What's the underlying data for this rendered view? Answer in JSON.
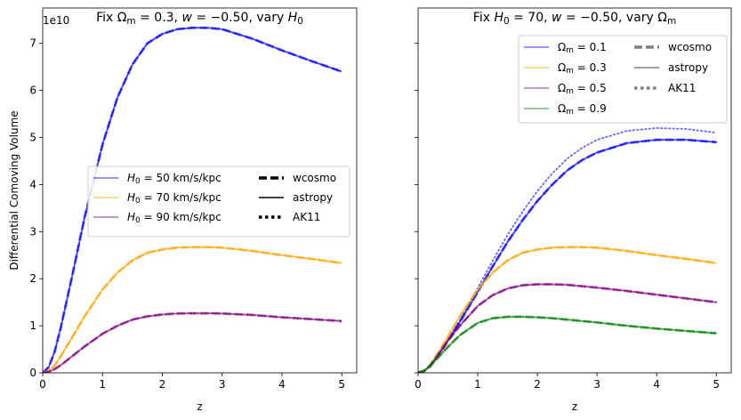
{
  "figure": {
    "ylabel": "Differential Comoving Volume",
    "offset_text": "1e10"
  },
  "chart_data": [
    {
      "type": "line",
      "title": "Fix Ωm = 0.3, w = −0.50, vary H0",
      "title_parts": [
        {
          "t": "Fix Ω",
          "s": "normal"
        },
        {
          "t": "m",
          "s": "sub"
        },
        {
          "t": " = 0.3, ",
          "s": "normal"
        },
        {
          "t": "w",
          "s": "italic"
        },
        {
          "t": " = −0.50, vary ",
          "s": "normal"
        },
        {
          "t": "H",
          "s": "italic"
        },
        {
          "t": "0",
          "s": "sub"
        }
      ],
      "xlabel": "z",
      "ylabel": "Differential Comoving Volume",
      "xlim": [
        0,
        5.25
      ],
      "ylim": [
        0,
        7.75
      ],
      "y_scale_factor": "1e10",
      "xticks": [
        0,
        1,
        2,
        3,
        4,
        5
      ],
      "yticks": [
        0,
        1,
        2,
        3,
        4,
        5,
        6,
        7
      ],
      "grid": false,
      "x": [
        0,
        0.1,
        0.2,
        0.3,
        0.5,
        0.7,
        1.0,
        1.25,
        1.5,
        1.75,
        2.0,
        2.25,
        2.5,
        2.75,
        3.0,
        3.5,
        4.0,
        4.5,
        5.0
      ],
      "series": [
        {
          "name": "H0 = 50 km/s/kpc",
          "color": "#0000ff",
          "values": [
            0,
            0.12,
            0.45,
            0.95,
            2.1,
            3.3,
            4.85,
            5.85,
            6.55,
            7.0,
            7.2,
            7.3,
            7.33,
            7.33,
            7.3,
            7.1,
            6.85,
            6.62,
            6.4
          ]
        },
        {
          "name": "H0 = 70 km/s/kpc",
          "color": "#ffa500",
          "values": [
            0,
            0.04,
            0.16,
            0.35,
            0.77,
            1.2,
            1.77,
            2.13,
            2.39,
            2.55,
            2.62,
            2.66,
            2.67,
            2.67,
            2.66,
            2.59,
            2.5,
            2.42,
            2.33
          ]
        },
        {
          "name": "H0 = 90 km/s/kpc",
          "color": "#800080",
          "values": [
            0,
            0.02,
            0.08,
            0.16,
            0.36,
            0.56,
            0.83,
            1.0,
            1.13,
            1.2,
            1.24,
            1.26,
            1.265,
            1.265,
            1.26,
            1.23,
            1.18,
            1.14,
            1.1
          ]
        }
      ],
      "legend": {
        "placement": "center-left",
        "entries": [
          {
            "label": "H0 = 50 km/s/kpc",
            "parts": [
              {
                "t": "H",
                "s": "italic"
              },
              {
                "t": "0",
                "s": "sub"
              },
              {
                "t": " = 50 km/s/kpc",
                "s": "normal"
              }
            ],
            "color": "#0000ff",
            "style": "solid-light"
          },
          {
            "label": "H0 = 70 km/s/kpc",
            "parts": [
              {
                "t": "H",
                "s": "italic"
              },
              {
                "t": "0",
                "s": "sub"
              },
              {
                "t": " = 70 km/s/kpc",
                "s": "normal"
              }
            ],
            "color": "#ffa500",
            "style": "solid-light"
          },
          {
            "label": "H0 = 90 km/s/kpc",
            "parts": [
              {
                "t": "H",
                "s": "italic"
              },
              {
                "t": "0",
                "s": "sub"
              },
              {
                "t": " = 90 km/s/kpc",
                "s": "normal"
              }
            ],
            "color": "#800080",
            "style": "solid-light"
          },
          {
            "label": "wcosmo",
            "parts": [
              {
                "t": "wcosmo",
                "s": "normal"
              }
            ],
            "color": "#000000",
            "style": "dashed"
          },
          {
            "label": "astropy",
            "parts": [
              {
                "t": "astropy",
                "s": "normal"
              }
            ],
            "color": "#000000",
            "style": "solid"
          },
          {
            "label": "AK11",
            "parts": [
              {
                "t": "AK11",
                "s": "normal"
              }
            ],
            "color": "#000000",
            "style": "dotted"
          }
        ]
      }
    },
    {
      "type": "line",
      "title": "Fix H0 = 70, w = −0.50, vary Ωm",
      "title_parts": [
        {
          "t": "Fix ",
          "s": "normal"
        },
        {
          "t": "H",
          "s": "italic"
        },
        {
          "t": "0",
          "s": "sub"
        },
        {
          "t": " = 70, ",
          "s": "normal"
        },
        {
          "t": "w",
          "s": "italic"
        },
        {
          "t": " = −0.50, vary Ω",
          "s": "normal"
        },
        {
          "t": "m",
          "s": "sub"
        }
      ],
      "xlabel": "z",
      "xlim": [
        0,
        5.25
      ],
      "ylim": [
        0,
        7.75
      ],
      "xticks": [
        0,
        1,
        2,
        3,
        4,
        5
      ],
      "grid": false,
      "x": [
        0,
        0.1,
        0.2,
        0.3,
        0.5,
        0.7,
        1.0,
        1.25,
        1.5,
        1.75,
        2.0,
        2.25,
        2.5,
        2.75,
        3.0,
        3.5,
        4.0,
        4.5,
        5.0
      ],
      "series": [
        {
          "name": "Ωm = 0.1",
          "color": "#0000ff",
          "values": [
            0,
            0.04,
            0.14,
            0.3,
            0.68,
            1.08,
            1.72,
            2.26,
            2.78,
            3.24,
            3.65,
            4.0,
            4.3,
            4.52,
            4.68,
            4.88,
            4.95,
            4.95,
            4.9
          ]
        },
        {
          "name": "Ωm = 0.1 (AK11)",
          "color": "#0000ff",
          "values": [
            0,
            0.04,
            0.14,
            0.31,
            0.7,
            1.12,
            1.8,
            2.38,
            2.93,
            3.42,
            3.86,
            4.24,
            4.55,
            4.78,
            4.95,
            5.14,
            5.2,
            5.18,
            5.1
          ]
        },
        {
          "name": "Ωm = 0.3",
          "color": "#ffa500",
          "values": [
            0,
            0.04,
            0.16,
            0.35,
            0.77,
            1.2,
            1.77,
            2.13,
            2.39,
            2.55,
            2.62,
            2.66,
            2.67,
            2.67,
            2.66,
            2.59,
            2.5,
            2.42,
            2.33
          ]
        },
        {
          "name": "Ωm = 0.5",
          "color": "#800080",
          "values": [
            0,
            0.04,
            0.15,
            0.32,
            0.68,
            1.0,
            1.42,
            1.65,
            1.79,
            1.86,
            1.88,
            1.88,
            1.87,
            1.84,
            1.81,
            1.74,
            1.66,
            1.58,
            1.5
          ]
        },
        {
          "name": "Ωm = 0.9",
          "color": "#008000",
          "values": [
            0,
            0.04,
            0.14,
            0.28,
            0.55,
            0.8,
            1.06,
            1.16,
            1.19,
            1.19,
            1.18,
            1.16,
            1.13,
            1.1,
            1.07,
            1.0,
            0.94,
            0.89,
            0.84
          ]
        }
      ],
      "legend": {
        "placement": "top-right",
        "entries": [
          {
            "label": "Ωm = 0.1",
            "parts": [
              {
                "t": "Ω",
                "s": "normal"
              },
              {
                "t": "m",
                "s": "sub"
              },
              {
                "t": " = 0.1",
                "s": "normal"
              }
            ],
            "color": "#0000ff",
            "style": "solid-light"
          },
          {
            "label": "Ωm = 0.3",
            "parts": [
              {
                "t": "Ω",
                "s": "normal"
              },
              {
                "t": "m",
                "s": "sub"
              },
              {
                "t": " = 0.3",
                "s": "normal"
              }
            ],
            "color": "#ffa500",
            "style": "solid-light"
          },
          {
            "label": "Ωm = 0.5",
            "parts": [
              {
                "t": "Ω",
                "s": "normal"
              },
              {
                "t": "m",
                "s": "sub"
              },
              {
                "t": " = 0.5",
                "s": "normal"
              }
            ],
            "color": "#800080",
            "style": "solid-light"
          },
          {
            "label": "Ωm = 0.9",
            "parts": [
              {
                "t": "Ω",
                "s": "normal"
              },
              {
                "t": "m",
                "s": "sub"
              },
              {
                "t": " = 0.9",
                "s": "normal"
              }
            ],
            "color": "#008000",
            "style": "solid-light"
          },
          {
            "label": "wcosmo",
            "parts": [
              {
                "t": "wcosmo",
                "s": "normal"
              }
            ],
            "color": "#808080",
            "style": "dashed"
          },
          {
            "label": "astropy",
            "parts": [
              {
                "t": "astropy",
                "s": "normal"
              }
            ],
            "color": "#808080",
            "style": "solid"
          },
          {
            "label": "AK11",
            "parts": [
              {
                "t": "AK11",
                "s": "normal"
              }
            ],
            "color": "#808080",
            "style": "dotted"
          }
        ]
      }
    }
  ]
}
